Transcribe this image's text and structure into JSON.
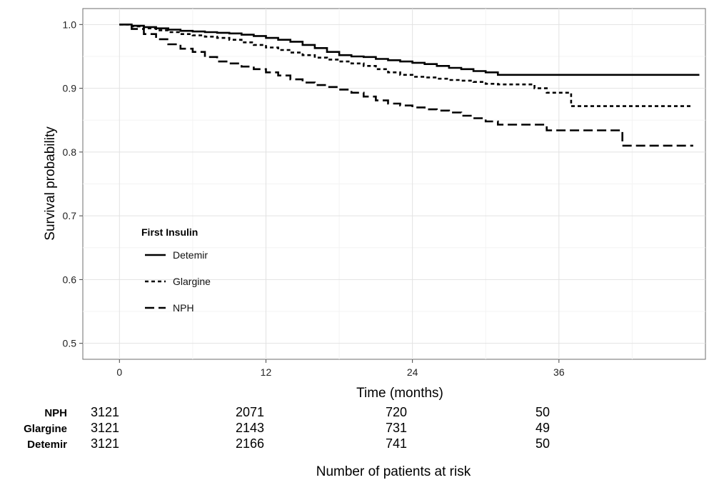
{
  "chart_data": {
    "type": "line",
    "subtype": "kaplan-meier step",
    "title": "",
    "xlabel": "Time (months)",
    "ylabel": "Survival probability",
    "xlim": [
      -3,
      48
    ],
    "ylim": [
      0.475,
      1.025
    ],
    "x_ticks": [
      0,
      12,
      24,
      36
    ],
    "x_tick_labels": [
      "0",
      "12",
      "24",
      "36"
    ],
    "y_ticks": [
      0.5,
      0.6,
      0.7,
      0.8,
      0.9,
      1.0
    ],
    "y_tick_labels": [
      "0.5",
      "0.6",
      "0.7",
      "0.8",
      "0.9",
      "1.0"
    ],
    "grid": true,
    "legend": {
      "title": "First Insulin",
      "placement": "bottom-left inside plot",
      "entries": [
        "Detemir",
        "Glargine",
        "NPH"
      ]
    },
    "series": [
      {
        "name": "Detemir",
        "linestyle": "solid",
        "points": [
          [
            0,
            1.0
          ],
          [
            1,
            0.998
          ],
          [
            2,
            0.996
          ],
          [
            3,
            0.994
          ],
          [
            4,
            0.992
          ],
          [
            5,
            0.99
          ],
          [
            6,
            0.989
          ],
          [
            7,
            0.988
          ],
          [
            8,
            0.987
          ],
          [
            9,
            0.986
          ],
          [
            10,
            0.984
          ],
          [
            11,
            0.982
          ],
          [
            12,
            0.979
          ],
          [
            13,
            0.976
          ],
          [
            14,
            0.973
          ],
          [
            15,
            0.968
          ],
          [
            16,
            0.963
          ],
          [
            17,
            0.957
          ],
          [
            18,
            0.952
          ],
          [
            19,
            0.95
          ],
          [
            20,
            0.949
          ],
          [
            21,
            0.946
          ],
          [
            22,
            0.944
          ],
          [
            23,
            0.942
          ],
          [
            24,
            0.94
          ],
          [
            25,
            0.938
          ],
          [
            26,
            0.935
          ],
          [
            27,
            0.932
          ],
          [
            28,
            0.93
          ],
          [
            29,
            0.927
          ],
          [
            30,
            0.925
          ],
          [
            31,
            0.921
          ],
          [
            36,
            0.921
          ],
          [
            42,
            0.921
          ],
          [
            47.5,
            0.921
          ]
        ]
      },
      {
        "name": "Glargine",
        "linestyle": "dotted",
        "points": [
          [
            0,
            1.0
          ],
          [
            1,
            0.997
          ],
          [
            2,
            0.994
          ],
          [
            3,
            0.991
          ],
          [
            4,
            0.988
          ],
          [
            5,
            0.985
          ],
          [
            6,
            0.983
          ],
          [
            7,
            0.981
          ],
          [
            8,
            0.979
          ],
          [
            9,
            0.976
          ],
          [
            10,
            0.972
          ],
          [
            11,
            0.968
          ],
          [
            12,
            0.964
          ],
          [
            13,
            0.96
          ],
          [
            14,
            0.956
          ],
          [
            15,
            0.952
          ],
          [
            16,
            0.948
          ],
          [
            17,
            0.945
          ],
          [
            18,
            0.942
          ],
          [
            19,
            0.939
          ],
          [
            20,
            0.935
          ],
          [
            21,
            0.93
          ],
          [
            22,
            0.925
          ],
          [
            23,
            0.921
          ],
          [
            24,
            0.918
          ],
          [
            25,
            0.917
          ],
          [
            26,
            0.915
          ],
          [
            27,
            0.913
          ],
          [
            28,
            0.912
          ],
          [
            29,
            0.91
          ],
          [
            30,
            0.907
          ],
          [
            31,
            0.906
          ],
          [
            33,
            0.906
          ],
          [
            34,
            0.9
          ],
          [
            35,
            0.893
          ],
          [
            36.5,
            0.893
          ],
          [
            37,
            0.872
          ],
          [
            42,
            0.872
          ],
          [
            47,
            0.872
          ]
        ]
      },
      {
        "name": "NPH",
        "linestyle": "dashed",
        "points": [
          [
            0,
            1.0
          ],
          [
            1,
            0.993
          ],
          [
            2,
            0.985
          ],
          [
            3,
            0.977
          ],
          [
            4,
            0.969
          ],
          [
            5,
            0.962
          ],
          [
            6,
            0.957
          ],
          [
            7,
            0.949
          ],
          [
            8,
            0.942
          ],
          [
            9,
            0.939
          ],
          [
            10,
            0.934
          ],
          [
            11,
            0.93
          ],
          [
            12,
            0.925
          ],
          [
            13,
            0.92
          ],
          [
            14,
            0.914
          ],
          [
            15,
            0.909
          ],
          [
            16,
            0.905
          ],
          [
            17,
            0.902
          ],
          [
            18,
            0.898
          ],
          [
            19,
            0.893
          ],
          [
            20,
            0.887
          ],
          [
            21,
            0.881
          ],
          [
            22,
            0.876
          ],
          [
            23,
            0.873
          ],
          [
            24,
            0.87
          ],
          [
            25,
            0.867
          ],
          [
            26,
            0.865
          ],
          [
            27,
            0.862
          ],
          [
            28,
            0.857
          ],
          [
            29,
            0.853
          ],
          [
            30,
            0.848
          ],
          [
            31,
            0.843
          ],
          [
            34,
            0.843
          ],
          [
            35,
            0.834
          ],
          [
            41,
            0.834
          ],
          [
            41.2,
            0.81
          ],
          [
            47,
            0.81
          ]
        ]
      }
    ],
    "risk_table": {
      "title": "Number of patients at risk",
      "times": [
        0,
        12,
        24,
        36
      ],
      "rows": [
        {
          "name": "NPH",
          "values": [
            "3121",
            "2071",
            "720",
            "50"
          ]
        },
        {
          "name": "Glargine",
          "values": [
            "3121",
            "2143",
            "731",
            "49"
          ]
        },
        {
          "name": "Detemir",
          "values": [
            "3121",
            "2166",
            "741",
            "50"
          ]
        }
      ]
    }
  }
}
